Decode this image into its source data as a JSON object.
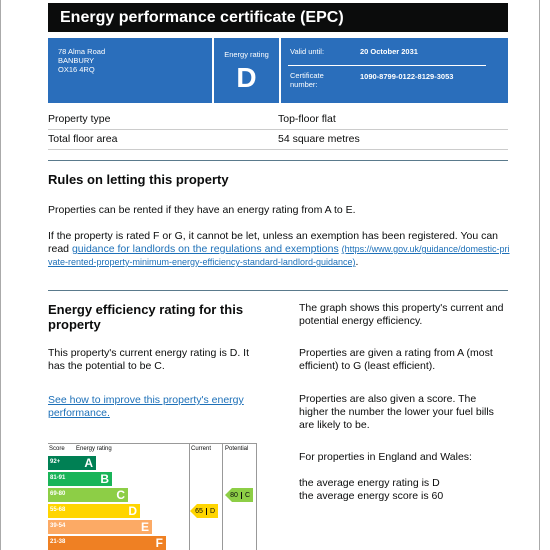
{
  "header": {
    "title": "Energy performance certificate (EPC)"
  },
  "summary": {
    "address": [
      "78 Alma Road",
      "BANBURY",
      "OX16 4RQ"
    ],
    "rating_label": "Energy rating",
    "rating": "D",
    "valid_until_label": "Valid until:",
    "valid_until": "20 October 2031",
    "certificate_label": [
      "Certificate",
      "number:"
    ],
    "certificate_number": "1090-8799-0122-8129-3053"
  },
  "property": {
    "rows": [
      [
        "Property type",
        "Top-floor flat"
      ],
      [
        "Total floor area",
        "54 square metres"
      ]
    ]
  },
  "letting": {
    "title": "Rules on letting this property",
    "para1": "Properties can be rented if they have an energy rating from A to E.",
    "para2": "If the property is rated F or G, it cannot be let, unless an exemption has been registered. You can read ",
    "link": "guidance for landlords on the regulations and exemptions",
    "url": "(https://www.gov.uk/guidance/domestic-private-rented-property-minimum-energy-efficiency-standard-landlord-guidance)",
    "end": "."
  },
  "efficiency": {
    "title": "Energy efficiency rating for this property",
    "para": "This property's current energy rating is D. It has the potential to be C.",
    "link": "See how to improve this property's energy performance.",
    "right": [
      "The graph shows this property's current and potential energy efficiency.",
      "Properties are given a rating from A (most efficient) to G (least efficient).",
      "Properties are also given a score. The higher the number the lower your fuel bills are likely to be.",
      "For properties in England and Wales:",
      "the average energy rating is D",
      "the average energy score is 60"
    ],
    "chart": {
      "headers": [
        "Score",
        "Energy rating",
        "Current",
        "Potential"
      ],
      "bands": [
        {
          "score": "92+",
          "letter": "A",
          "color": "#008054"
        },
        {
          "score": "81-91",
          "letter": "B",
          "color": "#19b459"
        },
        {
          "score": "69-80",
          "letter": "C",
          "color": "#8dce46"
        },
        {
          "score": "55-68",
          "letter": "D",
          "color": "#ffd500"
        },
        {
          "score": "39-54",
          "letter": "E",
          "color": "#fcaa65"
        },
        {
          "score": "21-38",
          "letter": "F",
          "color": "#ef8023"
        }
      ],
      "current": {
        "score": "65",
        "letter": "D",
        "color": "#ffd500"
      },
      "potential": {
        "score": "80",
        "letter": "C",
        "color": "#8dce46"
      }
    }
  }
}
